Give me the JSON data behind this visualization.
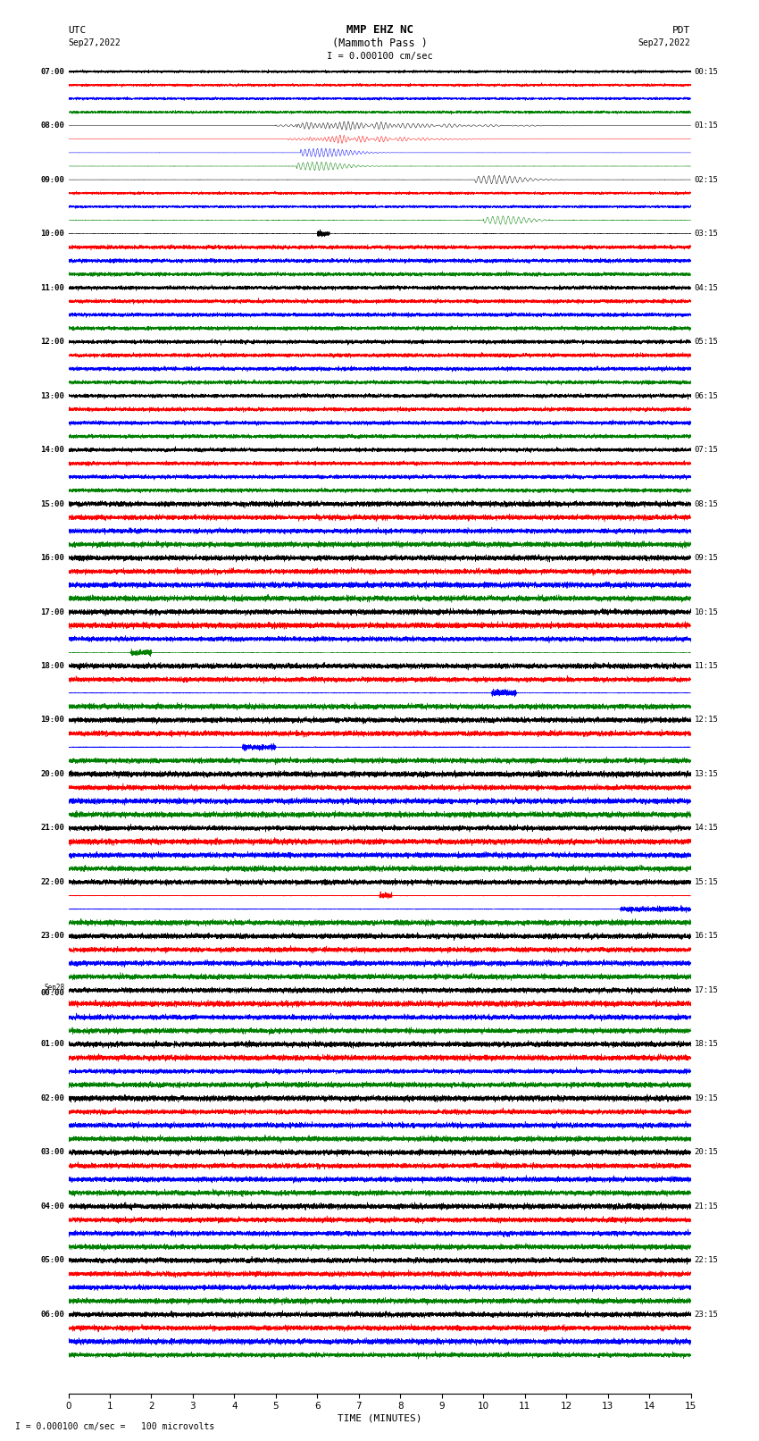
{
  "title_line1": "MMP EHZ NC",
  "title_line2": "(Mammoth Pass )",
  "scale_label": "I = 0.000100 cm/sec",
  "footer_label": "I = 0.000100 cm/sec =   100 microvolts",
  "utc_line1": "UTC",
  "utc_line2": "Sep27,2022",
  "pdt_line1": "PDT",
  "pdt_line2": "Sep27,2022",
  "xlabel": "TIME (MINUTES)",
  "left_times": [
    "07:00",
    "08:00",
    "09:00",
    "10:00",
    "11:00",
    "12:00",
    "13:00",
    "14:00",
    "15:00",
    "16:00",
    "17:00",
    "18:00",
    "19:00",
    "20:00",
    "21:00",
    "22:00",
    "23:00",
    "Sep28\n00:00",
    "01:00",
    "02:00",
    "03:00",
    "04:00",
    "05:00",
    "06:00"
  ],
  "right_times": [
    "00:15",
    "01:15",
    "02:15",
    "03:15",
    "04:15",
    "05:15",
    "06:15",
    "07:15",
    "08:15",
    "09:15",
    "10:15",
    "11:15",
    "12:15",
    "13:15",
    "14:15",
    "15:15",
    "16:15",
    "17:15",
    "18:15",
    "19:15",
    "20:15",
    "21:15",
    "22:15",
    "23:15"
  ],
  "n_rows": 24,
  "traces_per_row": 4,
  "colors": [
    "black",
    "red",
    "blue",
    "green"
  ],
  "bg_color": "white",
  "figsize": [
    8.5,
    16.13
  ],
  "dpi": 100,
  "n_samples": 9000
}
